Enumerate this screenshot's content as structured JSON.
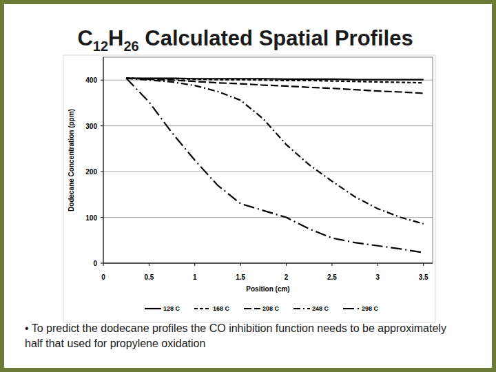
{
  "chart_data": {
    "type": "line",
    "title": "C12H26 Calculated Spatial Profiles",
    "x_label": "Position (cm)",
    "y_label": "Dodecane Concentration (ppm)",
    "annotation": "• To predict the dodecane profiles the CO inhibition function needs to be approximately half that used for propylene oxidation",
    "x": [
      0.25,
      0.5,
      0.75,
      1,
      1.25,
      1.5,
      1.75,
      2,
      2.25,
      2.5,
      2.75,
      3,
      3.25,
      3.5
    ],
    "series": [
      {
        "name": "128 C",
        "color": "#000000",
        "line_style": "solid",
        "values": [
          404,
          404,
          404,
          403,
          403,
          403,
          403,
          402,
          402,
          402,
          401,
          401,
          401,
          401
        ]
      },
      {
        "name": "168 C",
        "color": "#000000",
        "line_style": "dash",
        "values": [
          404,
          403,
          403,
          402,
          401,
          401,
          400,
          399,
          399,
          398,
          397,
          396,
          395,
          394
        ]
      },
      {
        "name": "208 C",
        "color": "#000000",
        "line_style": "longdash",
        "values": [
          404,
          402,
          400,
          397,
          394,
          392,
          389,
          387,
          384,
          382,
          379,
          376,
          374,
          371
        ]
      },
      {
        "name": "248 C",
        "color": "#000000",
        "line_style": "dashdot",
        "values": [
          404,
          400,
          396,
          388,
          375,
          356,
          315,
          259,
          215,
          179,
          145,
          119,
          100,
          86
        ]
      },
      {
        "name": "298 C",
        "color": "#000000",
        "line_style": "longdashdot",
        "values": [
          404,
          352,
          285,
          225,
          170,
          130,
          115,
          100,
          75,
          55,
          45,
          38,
          31,
          23
        ]
      }
    ],
    "xlim": [
      0,
      3.6
    ],
    "xticks": [
      0,
      0.5,
      1,
      1.5,
      2,
      2.5,
      3,
      3.5
    ],
    "ylim": [
      0,
      450
    ],
    "yticks": [
      0,
      100,
      200,
      300,
      400
    ],
    "grid": true,
    "legend": "bottom"
  }
}
